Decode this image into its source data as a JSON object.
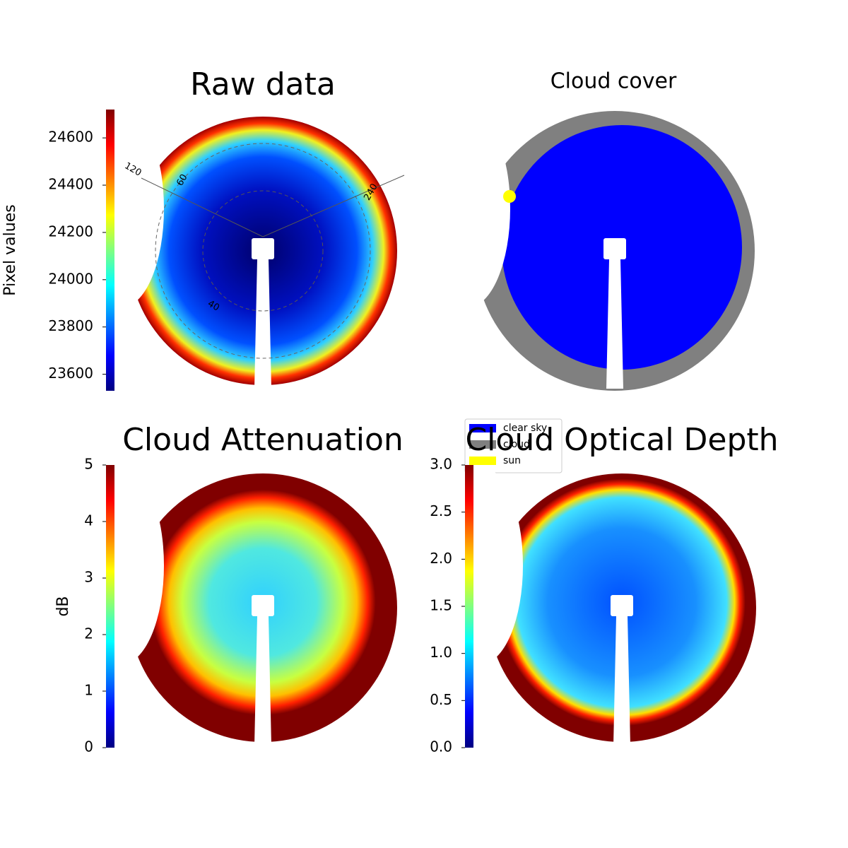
{
  "chart_data": [
    {
      "type": "image",
      "title": "Raw data",
      "colorbar_label": "Pixel values",
      "colormap": "jet",
      "clim": [
        23530,
        24720
      ],
      "cticks": [
        23600,
        23800,
        24000,
        24200,
        24400,
        24600
      ],
      "annotations": [
        "120",
        "60",
        "240",
        "40"
      ]
    },
    {
      "type": "image",
      "title": "Cloud cover",
      "series": [
        {
          "name": "clear sky",
          "color": "#0000ff"
        },
        {
          "name": "cloud",
          "color": "#808080"
        },
        {
          "name": "sun",
          "color": "#ffff00"
        }
      ]
    },
    {
      "type": "image",
      "title": "Cloud Attenuation",
      "colorbar_label": "dB",
      "colormap": "jet",
      "clim": [
        0,
        5
      ],
      "cticks": [
        0,
        1,
        2,
        3,
        4,
        5
      ]
    },
    {
      "type": "image",
      "title": "Cloud Optical Depth",
      "colormap": "jet",
      "clim": [
        0,
        3
      ],
      "cticks": [
        {
          "value": 0,
          "label": "0.0"
        },
        {
          "value": 0.5,
          "label": "0.5"
        },
        {
          "value": 1,
          "label": "1.0"
        },
        {
          "value": 1.5,
          "label": "1.5"
        },
        {
          "value": 2,
          "label": "2.0"
        },
        {
          "value": 2.5,
          "label": "2.5"
        },
        {
          "value": 3,
          "label": "3.0"
        }
      ]
    }
  ]
}
